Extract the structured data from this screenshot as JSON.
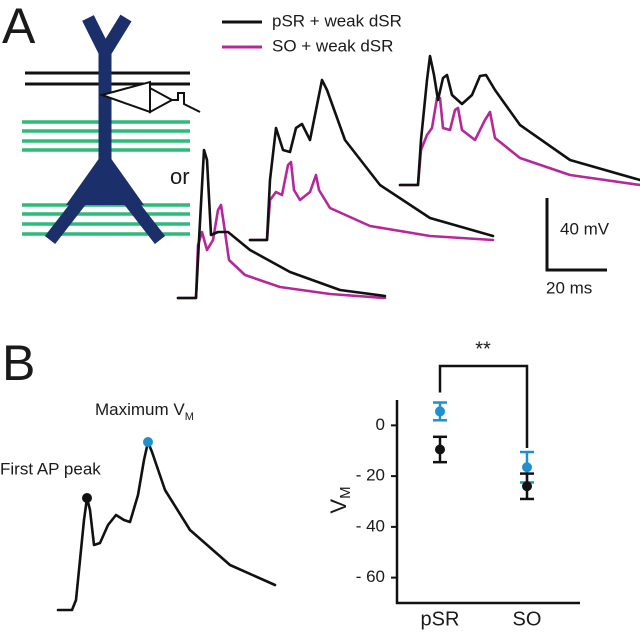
{
  "panel_a": {
    "letter": "A",
    "or_label": "or",
    "legend": [
      "pSR + weak dSR",
      "SO + weak dSR"
    ],
    "scale_y": "40 mV",
    "scale_x": "20 ms"
  },
  "panel_b": {
    "letter": "B",
    "first_ap_label": "First AP peak",
    "max_label": {
      "main": "Maximum  V",
      "sub": "M"
    }
  },
  "chart_data": {
    "type": "errorbar",
    "y_label": {
      "main": "V",
      "sub": "M"
    },
    "significance": "**",
    "categories": [
      "pSR",
      "SO"
    ],
    "series": [
      {
        "color": "#1e90d0",
        "values": [
          5.5,
          -16.5
        ],
        "errors": [
          3.5,
          6
        ]
      },
      {
        "color": "#111111",
        "values": [
          -9.5,
          -24
        ],
        "errors": [
          5,
          5
        ]
      }
    ],
    "ylim": [
      -70,
      10
    ],
    "yticks": [
      0,
      {
        "value": -20,
        "label": "- 20"
      },
      {
        "value": -40,
        "label": "- 40"
      },
      {
        "value": -60,
        "label": "- 60"
      }
    ]
  }
}
